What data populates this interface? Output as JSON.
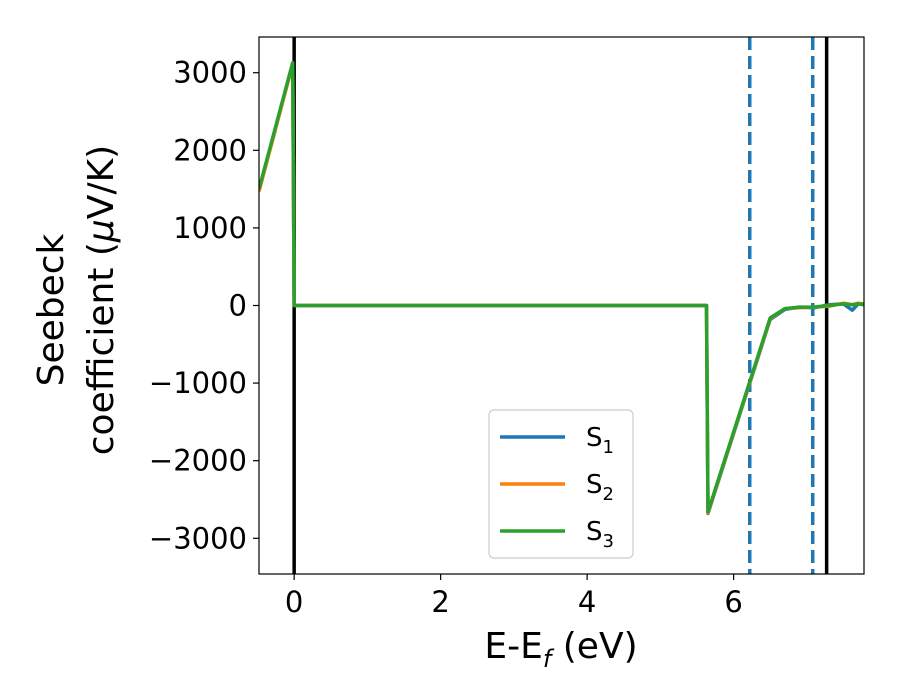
{
  "chart_data": {
    "type": "line",
    "xlabel": {
      "main": "E-E",
      "sub": "f",
      "tail": " (eV)"
    },
    "ylabel": {
      "line1": "Seebeck",
      "line2_pre": "coefficient  (",
      "mu": "μ",
      "line2_post": "V/K)"
    },
    "xlim": [
      -0.48,
      7.78
    ],
    "ylim": [
      -3460,
      3460
    ],
    "xticks": [
      {
        "value": 0,
        "label": "0"
      },
      {
        "value": 2,
        "label": "2"
      },
      {
        "value": 4,
        "label": "4"
      },
      {
        "value": 6,
        "label": "6"
      }
    ],
    "yticks": [
      {
        "value": 3000,
        "label": "3000"
      },
      {
        "value": 2000,
        "label": "2000"
      },
      {
        "value": 1000,
        "label": "1000"
      },
      {
        "value": 0,
        "label": "0"
      },
      {
        "value": -1000,
        "label": "−1000"
      },
      {
        "value": -2000,
        "label": "−2000"
      },
      {
        "value": -3000,
        "label": "−3000"
      }
    ],
    "grid": false,
    "legend_position": "lower-center",
    "vlines": [
      {
        "x": 0.0,
        "style": "solid",
        "color": "#000000"
      },
      {
        "x": 7.27,
        "style": "solid",
        "color": "#000000"
      },
      {
        "x": 6.22,
        "style": "dashed",
        "color": "#1f77b4"
      },
      {
        "x": 7.08,
        "style": "dashed",
        "color": "#1f77b4"
      }
    ],
    "series": [
      {
        "name": "S",
        "sub": "1",
        "color": "#1f77b4",
        "x": [
          -0.48,
          -0.02,
          0.0,
          5.63,
          5.65,
          6.5,
          6.7,
          6.9,
          7.1,
          7.3,
          7.5,
          7.62,
          7.7,
          7.78
        ],
        "y": [
          1480,
          3120,
          0,
          0,
          -2680,
          -180,
          -50,
          -20,
          -30,
          10,
          20,
          -60,
          20,
          10
        ]
      },
      {
        "name": "S",
        "sub": "2",
        "color": "#ff7f0e",
        "x": [
          -0.48,
          -0.02,
          0.0,
          5.63,
          5.65,
          6.5,
          6.7,
          6.9,
          7.1,
          7.3,
          7.5,
          7.62,
          7.7,
          7.78
        ],
        "y": [
          1470,
          3110,
          0,
          0,
          -2670,
          -170,
          -40,
          -30,
          -20,
          -10,
          30,
          10,
          30,
          20
        ]
      },
      {
        "name": "S",
        "sub": "3",
        "color": "#2ca02c",
        "x": [
          -0.48,
          -0.02,
          0.0,
          5.63,
          5.65,
          6.5,
          6.7,
          6.9,
          7.1,
          7.3,
          7.5,
          7.62,
          7.7,
          7.78
        ],
        "y": [
          1500,
          3130,
          0,
          0,
          -2660,
          -160,
          -40,
          -20,
          -20,
          0,
          20,
          10,
          20,
          10
        ]
      }
    ]
  }
}
